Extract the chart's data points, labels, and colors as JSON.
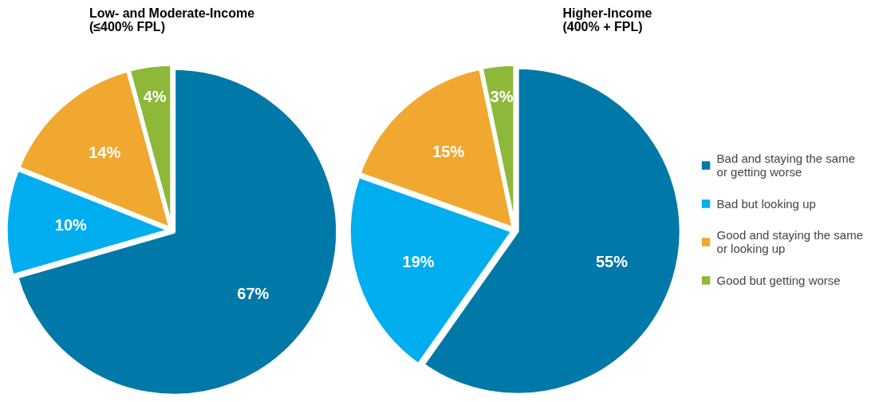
{
  "chart_data": [
    {
      "type": "pie",
      "title": "Low- and Moderate-Income\n(≤400% FPL)",
      "categories": [
        "Bad and staying the same or getting worse",
        "Bad but looking up",
        "Good and staying the same or looking up",
        "Good but getting worse"
      ],
      "values": [
        67,
        10,
        14,
        4
      ],
      "value_labels": [
        "67%",
        "10%",
        "14%",
        "4%"
      ],
      "colors": [
        "#0079a8",
        "#00aeef",
        "#f0a830",
        "#8db83a"
      ],
      "legend": "right"
    },
    {
      "type": "pie",
      "title": "Higher-Income\n(400% + FPL)",
      "categories": [
        null,
        null,
        null,
        null
      ],
      "values": [
        55,
        19,
        15,
        3
      ],
      "value_labels": [
        "55%",
        "19%",
        "15%",
        "3%"
      ],
      "colors": [
        "#0079a8",
        "#00aeef",
        "#f0a830",
        "#8db83a"
      ],
      "legend": false
    }
  ]
}
